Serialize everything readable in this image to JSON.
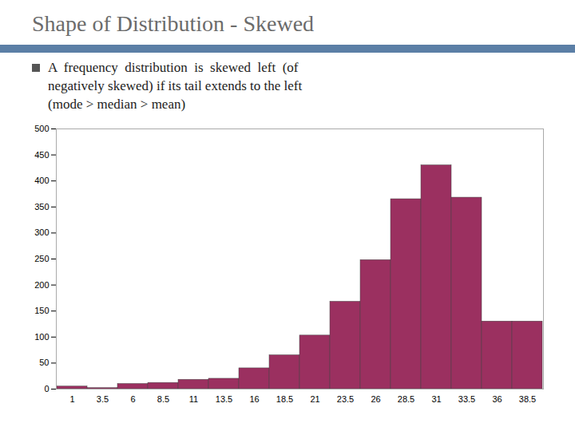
{
  "chart_data": {
    "type": "bar",
    "title": "Shape of Distribution - Skewed",
    "annotations": [
      "A  frequency  distribution  is  skewed  left  (of",
      "negatively skewed) if its tail extends to the left",
      "(mode > median > mean)"
    ],
    "categories": [
      "1",
      "3.5",
      "6",
      "8.5",
      "11",
      "13.5",
      "16",
      "18.5",
      "21",
      "23.5",
      "26",
      "28.5",
      "31",
      "33.5",
      "36",
      "38.5"
    ],
    "values": [
      5,
      2,
      10,
      12,
      18,
      20,
      40,
      65,
      103,
      168,
      248,
      365,
      430,
      368,
      130,
      130
    ],
    "color": "#9b3060",
    "ylim": [
      0,
      500
    ],
    "yticks": [
      0,
      50,
      100,
      150,
      200,
      250,
      300,
      350,
      400,
      450,
      500
    ],
    "grid": false
  }
}
